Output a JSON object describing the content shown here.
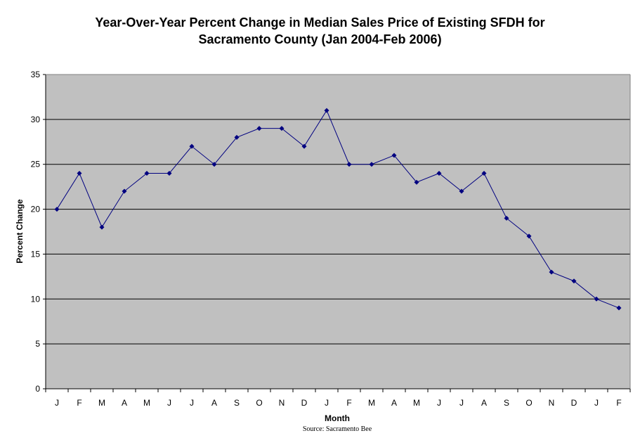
{
  "chart_data": {
    "type": "line",
    "title_lines": [
      "Year-Over-Year Percent Change in Median Sales Price of Existing SFDH for",
      "Sacramento County (Jan 2004-Feb 2006)"
    ],
    "xlabel": "Month",
    "ylabel": "Percent Change",
    "source": "Source: Sacramento Bee",
    "categories": [
      "J",
      "F",
      "M",
      "A",
      "M",
      "J",
      "J",
      "A",
      "S",
      "O",
      "N",
      "D",
      "J",
      "F",
      "M",
      "A",
      "M",
      "J",
      "J",
      "A",
      "S",
      "O",
      "N",
      "D",
      "J",
      "F"
    ],
    "series": [
      {
        "values": [
          20,
          24,
          18,
          22,
          24,
          24,
          27,
          25,
          28,
          29,
          29,
          27,
          31,
          25,
          25,
          26,
          23,
          24,
          22,
          24,
          19,
          17,
          13,
          12,
          10,
          9
        ],
        "color": "#000080"
      }
    ],
    "ylim": [
      0,
      35
    ],
    "yticks": [
      0,
      5,
      10,
      15,
      20,
      25,
      30,
      35
    ],
    "grid": true,
    "legend": "none",
    "plot_background": "#c0c0c0"
  }
}
